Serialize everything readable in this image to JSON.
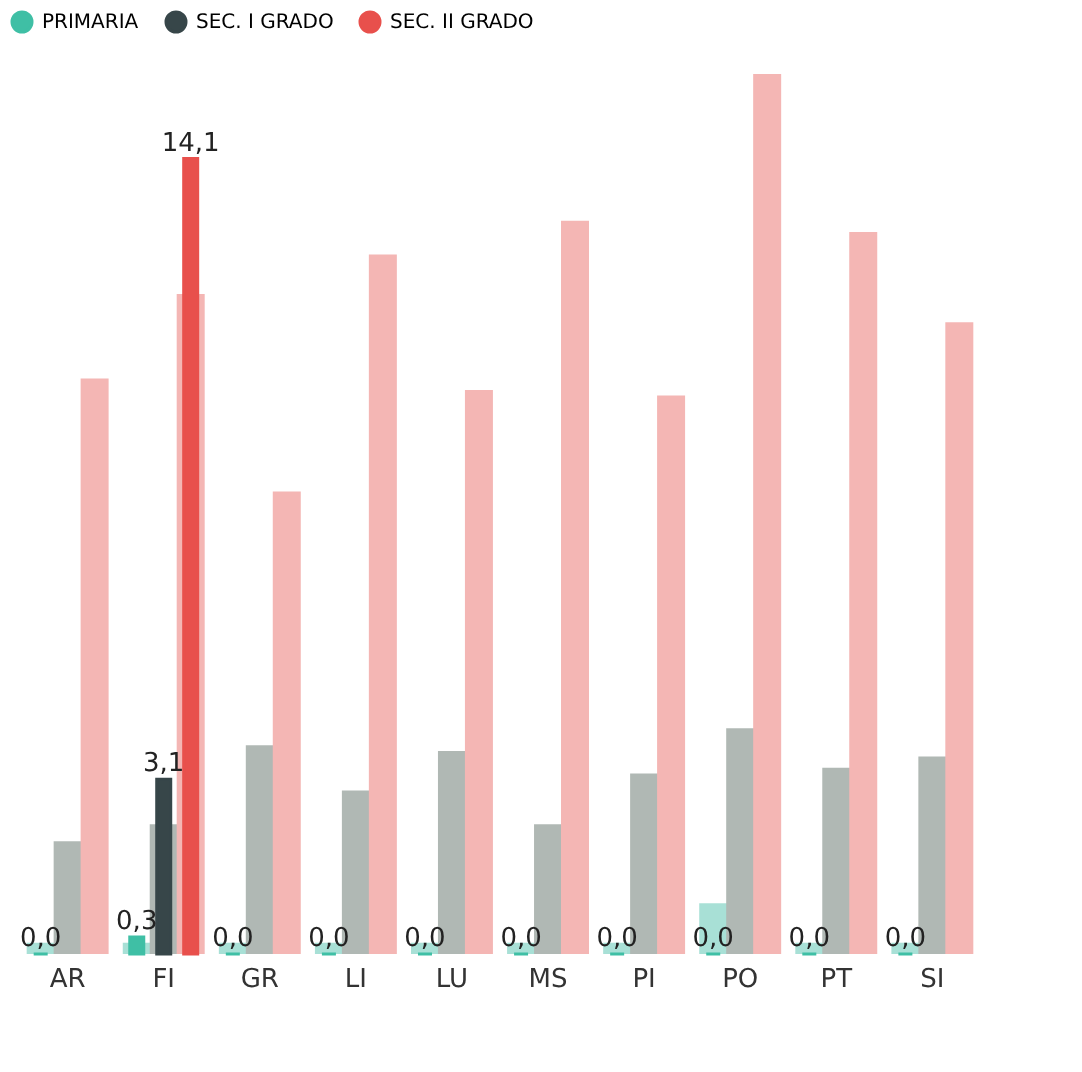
{
  "chart_data": {
    "type": "bar",
    "categories": [
      "AR",
      "FI",
      "GR",
      "LI",
      "LU",
      "MS",
      "PI",
      "PO",
      "PT",
      "SI"
    ],
    "tick_labels": "x",
    "legend": "top",
    "grid": false,
    "series": [
      {
        "name": "PRIMARIA",
        "color": "#3fbfa5",
        "values": [
          0.0,
          0.3,
          0.0,
          0.0,
          0.0,
          0.0,
          0.0,
          0.0,
          0.0,
          0.0
        ],
        "value_labels": [
          "0,0",
          "0,3",
          "0,0",
          "0,0",
          "0,0",
          "0,0",
          "0,0",
          "0,0",
          "0,0",
          "0,0"
        ]
      },
      {
        "name": "SEC. I GRADO",
        "color": "#374649",
        "values": [
          null,
          3.1,
          null,
          null,
          null,
          null,
          null,
          null,
          null,
          null
        ],
        "value_labels": [
          null,
          "3,1",
          null,
          null,
          null,
          null,
          null,
          null,
          null,
          null
        ]
      },
      {
        "name": "SEC. II GRADO",
        "color": "#e8504c",
        "values": [
          null,
          14.1,
          null,
          null,
          null,
          null,
          null,
          null,
          null,
          null
        ],
        "value_labels": [
          null,
          "14,1",
          null,
          null,
          null,
          null,
          null,
          null,
          null,
          null
        ]
      },
      {
        "color": "#a8e0d6",
        "values": [
          0.2,
          0.2,
          0.2,
          0.2,
          0.2,
          0.2,
          0.2,
          0.9,
          0.2,
          0.2
        ]
      },
      {
        "color": "#b0b8b4",
        "values": [
          2.0,
          2.3,
          3.7,
          2.9,
          3.6,
          2.3,
          3.2,
          4.0,
          3.3,
          3.5
        ]
      },
      {
        "color": "#f4b6b4",
        "values": [
          10.2,
          11.7,
          8.2,
          12.4,
          10.0,
          13.0,
          9.9,
          15.6,
          12.8,
          11.2
        ]
      }
    ]
  }
}
